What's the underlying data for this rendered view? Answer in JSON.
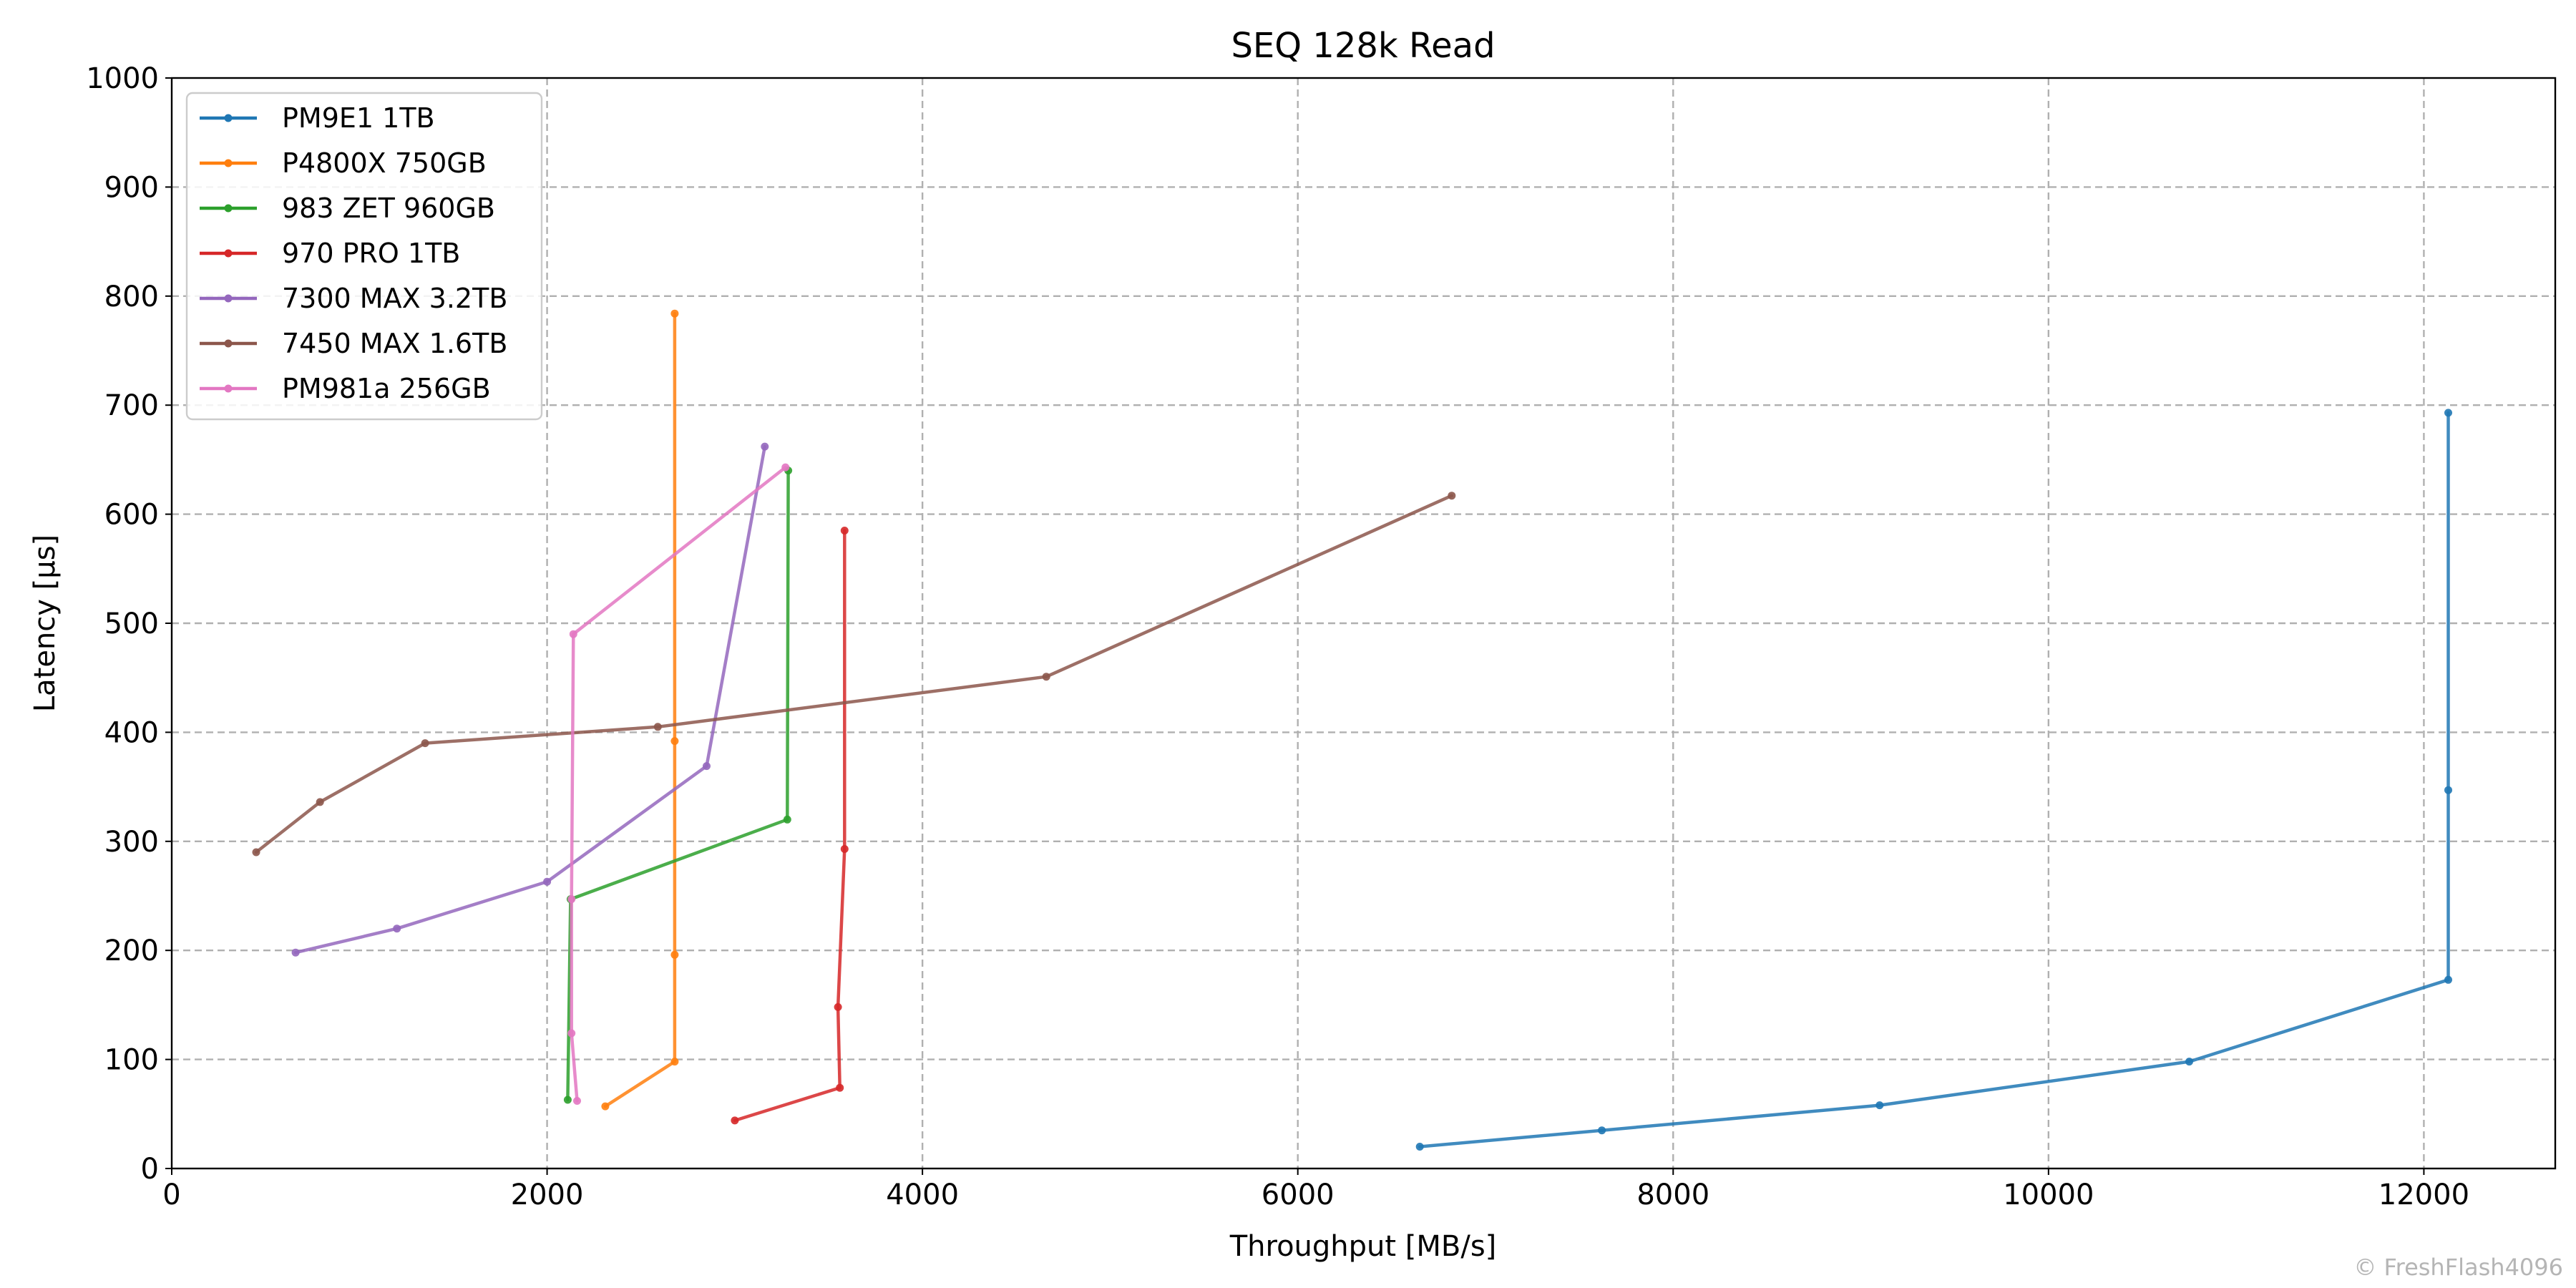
{
  "chart_data": {
    "type": "line",
    "title": "SEQ 128k Read",
    "xlabel": "Throughput [MB/s]",
    "ylabel": "Latency [µs]",
    "xlim": [
      0,
      12700
    ],
    "ylim": [
      0,
      1000
    ],
    "xticks": [
      0,
      2000,
      4000,
      6000,
      8000,
      10000,
      12000
    ],
    "yticks": [
      0,
      100,
      200,
      300,
      400,
      500,
      600,
      700,
      800,
      900,
      1000
    ],
    "grid": true,
    "legend_position": "top-left",
    "series": [
      {
        "name": "PM9E1 1TB",
        "color": "#1f77b4",
        "points": [
          [
            6650,
            20
          ],
          [
            7620,
            35
          ],
          [
            9100,
            58
          ],
          [
            10750,
            98
          ],
          [
            12130,
            173
          ],
          [
            12130,
            347
          ],
          [
            12130,
            693
          ]
        ]
      },
      {
        "name": "P4800X 750GB",
        "color": "#ff7f0e",
        "points": [
          [
            2310,
            57
          ],
          [
            2680,
            98
          ],
          [
            2680,
            196
          ],
          [
            2680,
            392
          ],
          [
            2680,
            784
          ]
        ]
      },
      {
        "name": "983 ZET 960GB",
        "color": "#2ca02c",
        "points": [
          [
            2110,
            63
          ],
          [
            2125,
            247
          ],
          [
            3280,
            320
          ],
          [
            3285,
            640
          ]
        ]
      },
      {
        "name": "970 PRO 1TB",
        "color": "#d62728",
        "points": [
          [
            3000,
            44
          ],
          [
            3560,
            74
          ],
          [
            3550,
            148
          ],
          [
            3585,
            293
          ],
          [
            3585,
            585
          ]
        ]
      },
      {
        "name": "7300 MAX 3.2TB",
        "color": "#9467bd",
        "points": [
          [
            660,
            198
          ],
          [
            1200,
            220
          ],
          [
            2000,
            263
          ],
          [
            2850,
            369
          ],
          [
            3160,
            662
          ]
        ]
      },
      {
        "name": "7450 MAX 1.6TB",
        "color": "#8c564b",
        "points": [
          [
            450,
            290
          ],
          [
            790,
            336
          ],
          [
            1350,
            390
          ],
          [
            2590,
            405
          ],
          [
            4660,
            451
          ],
          [
            6820,
            617
          ]
        ]
      },
      {
        "name": "PM981a 256GB",
        "color": "#e377c2",
        "points": [
          [
            2160,
            62
          ],
          [
            2130,
            124
          ],
          [
            2130,
            247
          ],
          [
            2140,
            490
          ],
          [
            3270,
            643
          ]
        ]
      }
    ]
  },
  "watermark": "© FreshFlash4096"
}
